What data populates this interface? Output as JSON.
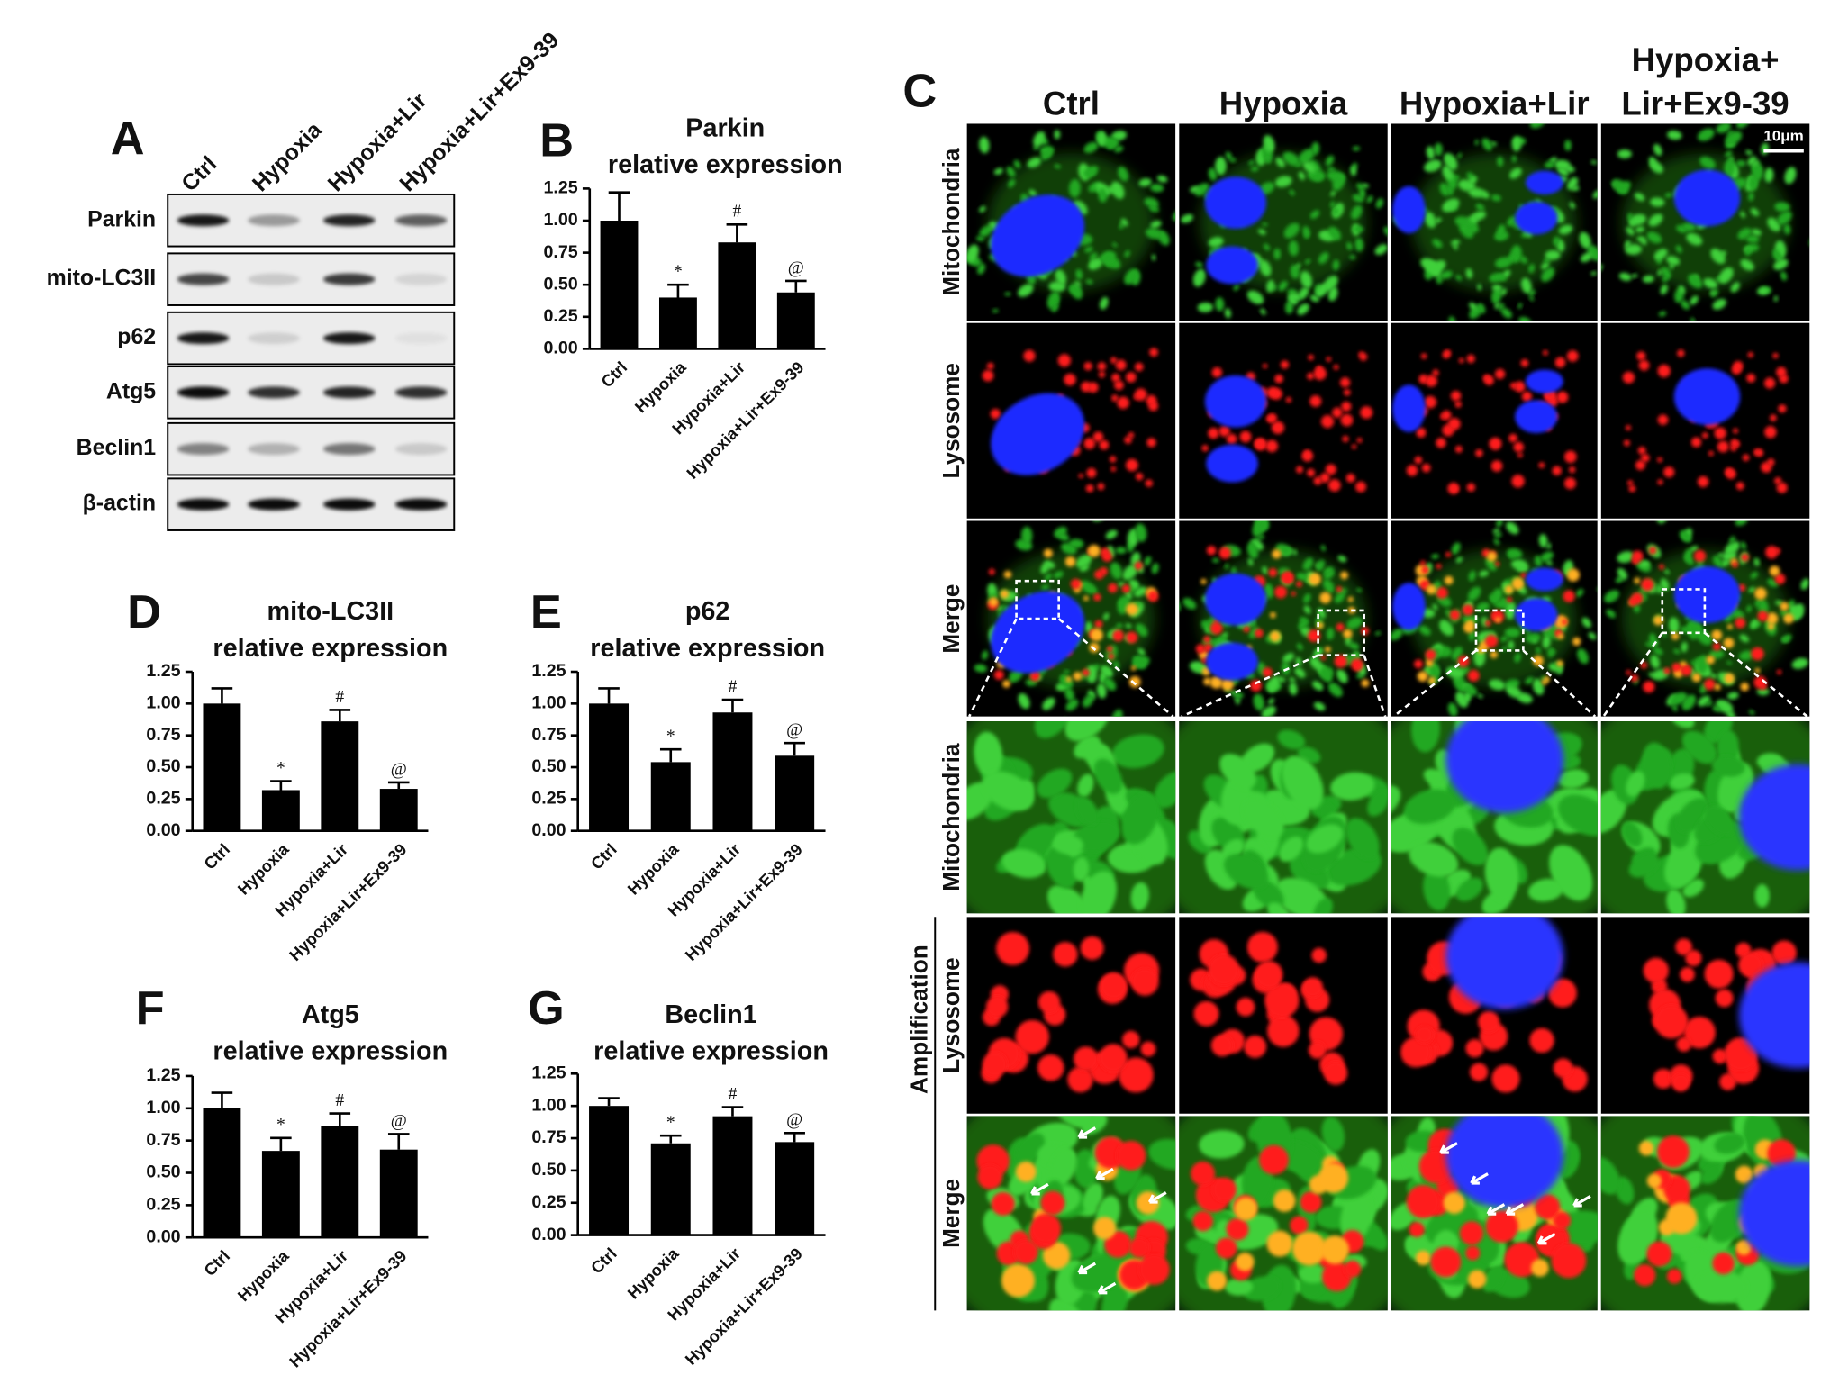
{
  "western_blot": {
    "panel": "A",
    "columns": [
      "Ctrl",
      "Hypoxia",
      "Hypoxia+Lir",
      "Hypoxia+Lir+Ex9-39"
    ],
    "rows": [
      "Parkin",
      "mito-LC3II",
      "p62",
      "Atg5",
      "Beclin1",
      "β-actin"
    ]
  },
  "microscopy": {
    "panel": "C",
    "columns": [
      [
        "Ctrl"
      ],
      [
        "Hypoxia"
      ],
      [
        "Hypoxia+Lir"
      ],
      [
        "Hypoxia+",
        "Lir+Ex9-39"
      ]
    ],
    "rows": [
      "Mitochondria",
      "Lysosome",
      "Merge"
    ],
    "amplification_label": "Amplification",
    "amplification_rows": [
      "Mitochondria",
      "Lysosome",
      "Merge"
    ],
    "scale_bar": "10μm"
  },
  "chart_data": [
    {
      "type": "bar",
      "panel": "B",
      "title": [
        "Parkin",
        "relative expression"
      ],
      "categories": [
        "Ctrl",
        "Hypoxia",
        "Hypoxia+Lir",
        "Hypoxia+Lir+Ex9-39"
      ],
      "values": [
        1.0,
        0.4,
        0.83,
        0.44
      ],
      "errors": [
        0.22,
        0.1,
        0.14,
        0.09
      ],
      "annotations": [
        null,
        "*",
        "#",
        "@"
      ],
      "color": "#000000",
      "ylim": [
        0,
        1.25
      ],
      "yticks": [
        {
          "value": 0,
          "label": "0.00"
        },
        {
          "value": 0.25,
          "label": "0.25"
        },
        {
          "value": 0.5,
          "label": "0.50"
        },
        {
          "value": 0.75,
          "label": "0.75"
        },
        {
          "value": 1,
          "label": "1.00"
        },
        {
          "value": 1.25,
          "label": "1.25"
        }
      ]
    },
    {
      "type": "bar",
      "panel": "D",
      "title": [
        "mito-LC3II",
        "relative expression"
      ],
      "categories": [
        "Ctrl",
        "Hypoxia",
        "Hypoxia+Lir",
        "Hypoxia+Lir+Ex9-39"
      ],
      "values": [
        1.0,
        0.32,
        0.86,
        0.33
      ],
      "errors": [
        0.12,
        0.07,
        0.09,
        0.05
      ],
      "annotations": [
        null,
        "*",
        "#",
        "@"
      ],
      "color": "#000000",
      "ylim": [
        0,
        1.25
      ],
      "yticks": [
        {
          "value": 0,
          "label": "0.00"
        },
        {
          "value": 0.25,
          "label": "0.25"
        },
        {
          "value": 0.5,
          "label": "0.50"
        },
        {
          "value": 0.75,
          "label": "0.75"
        },
        {
          "value": 1,
          "label": "1.00"
        },
        {
          "value": 1.25,
          "label": "1.25"
        }
      ]
    },
    {
      "type": "bar",
      "panel": "E",
      "title": [
        "p62",
        "relative expression"
      ],
      "categories": [
        "Ctrl",
        "Hypoxia",
        "Hypoxia+Lir",
        "Hypoxia+Lir+Ex9-39"
      ],
      "values": [
        1.0,
        0.54,
        0.93,
        0.59
      ],
      "errors": [
        0.12,
        0.1,
        0.1,
        0.1
      ],
      "annotations": [
        null,
        "*",
        "#",
        "@"
      ],
      "color": "#000000",
      "ylim": [
        0,
        1.25
      ],
      "yticks": [
        {
          "value": 0,
          "label": "0.00"
        },
        {
          "value": 0.25,
          "label": "0.25"
        },
        {
          "value": 0.5,
          "label": "0.50"
        },
        {
          "value": 0.75,
          "label": "0.75"
        },
        {
          "value": 1,
          "label": "1.00"
        },
        {
          "value": 1.25,
          "label": "1.25"
        }
      ]
    },
    {
      "type": "bar",
      "panel": "F",
      "title": [
        "Atg5",
        "relative expression"
      ],
      "categories": [
        "Ctrl",
        "Hypoxia",
        "Hypoxia+Lir",
        "Hypoxia+Lir+Ex9-39"
      ],
      "values": [
        1.0,
        0.67,
        0.86,
        0.68
      ],
      "errors": [
        0.12,
        0.1,
        0.1,
        0.12
      ],
      "annotations": [
        null,
        "*",
        "#",
        "@"
      ],
      "color": "#000000",
      "ylim": [
        0,
        1.25
      ],
      "yticks": [
        {
          "value": 0,
          "label": "0.00"
        },
        {
          "value": 0.25,
          "label": "0.25"
        },
        {
          "value": 0.5,
          "label": "0.50"
        },
        {
          "value": 0.75,
          "label": "0.75"
        },
        {
          "value": 1,
          "label": "1.00"
        },
        {
          "value": 1.25,
          "label": "1.25"
        }
      ]
    },
    {
      "type": "bar",
      "panel": "G",
      "title": [
        "Beclin1",
        "relative expression"
      ],
      "categories": [
        "Ctrl",
        "Hypoxia",
        "Hypoxia+Lir",
        "Hypoxia+Lir+Ex9-39"
      ],
      "values": [
        1.0,
        0.71,
        0.92,
        0.72
      ],
      "errors": [
        0.06,
        0.06,
        0.07,
        0.07
      ],
      "annotations": [
        null,
        "*",
        "#",
        "@"
      ],
      "color": "#000000",
      "ylim": [
        0,
        1.25
      ],
      "yticks": [
        {
          "value": 0,
          "label": "0.00"
        },
        {
          "value": 0.25,
          "label": "0.25"
        },
        {
          "value": 0.5,
          "label": "0.50"
        },
        {
          "value": 0.75,
          "label": "0.75"
        },
        {
          "value": 1,
          "label": "1.00"
        },
        {
          "value": 1.25,
          "label": "1.25"
        }
      ]
    }
  ]
}
